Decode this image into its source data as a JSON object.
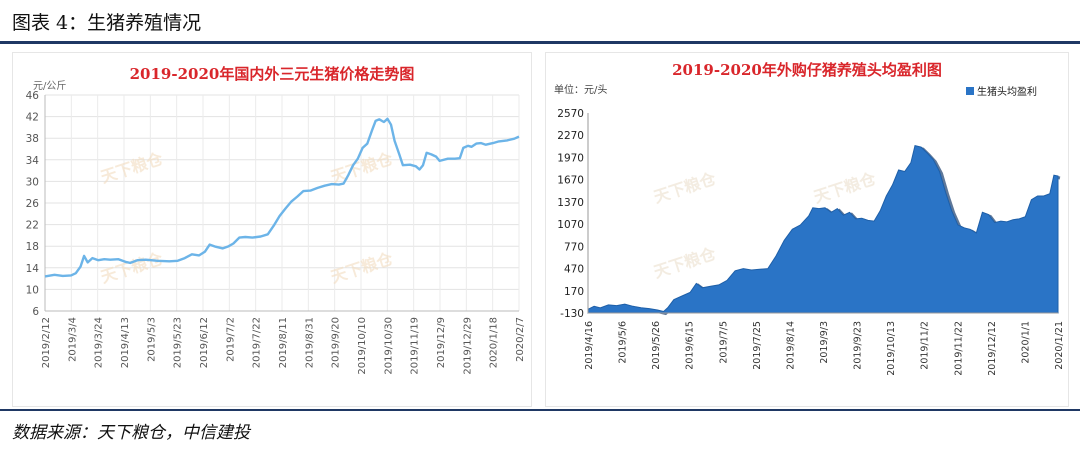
{
  "figure_title": "图表 4：生猪养殖情况",
  "source_text": "数据来源：天下粮仓，中信建投",
  "chart_data": [
    {
      "type": "line",
      "title": "2019-2020年国内外三元生猪价格走势图",
      "ylabel": "元/公斤",
      "ylim": [
        6,
        46
      ],
      "yticks": [
        "6",
        "10",
        "14",
        "18",
        "22",
        "26",
        "30",
        "34",
        "38",
        "42",
        "46"
      ],
      "x_tick_labels": [
        "2019/2/12",
        "2019/3/4",
        "2019/3/24",
        "2019/4/13",
        "2019/5/3",
        "2019/5/23",
        "2019/6/12",
        "2019/7/2",
        "2019/7/22",
        "2019/8/11",
        "2019/8/31",
        "2019/9/20",
        "2019/10/10",
        "2019/10/30",
        "2019/11/19",
        "2019/12/9",
        "2019/12/29",
        "2020/1/18",
        "2020/2/7"
      ],
      "grid": true,
      "color": "#6cb4e8",
      "series": [
        {
          "points": [
            [
              0,
              12.4
            ],
            [
              0.8,
              12.7
            ],
            [
              1.5,
              12.5
            ],
            [
              2.2,
              12.6
            ],
            [
              2.6,
              13.0
            ],
            [
              3.0,
              14.2
            ],
            [
              3.3,
              16.2
            ],
            [
              3.6,
              15.0
            ],
            [
              4.0,
              15.8
            ],
            [
              4.5,
              15.4
            ],
            [
              5.0,
              15.6
            ],
            [
              5.5,
              15.5
            ],
            [
              6.2,
              15.6
            ],
            [
              6.8,
              15.1
            ],
            [
              7.2,
              14.9
            ],
            [
              7.8,
              15.4
            ],
            [
              8.5,
              15.5
            ],
            [
              9.5,
              15.3
            ],
            [
              10.5,
              15.2
            ],
            [
              11.2,
              15.3
            ],
            [
              11.8,
              15.8
            ],
            [
              12.4,
              16.5
            ],
            [
              13.0,
              16.3
            ],
            [
              13.5,
              17.0
            ],
            [
              13.9,
              18.3
            ],
            [
              14.4,
              17.9
            ],
            [
              15.0,
              17.6
            ],
            [
              15.5,
              18.0
            ],
            [
              15.9,
              18.5
            ],
            [
              16.4,
              19.6
            ],
            [
              16.9,
              19.7
            ],
            [
              17.5,
              19.6
            ],
            [
              18.2,
              19.8
            ],
            [
              18.8,
              20.2
            ],
            [
              19.3,
              21.8
            ],
            [
              19.8,
              23.6
            ],
            [
              20.3,
              25.0
            ],
            [
              20.8,
              26.3
            ],
            [
              21.3,
              27.2
            ],
            [
              21.8,
              28.2
            ],
            [
              22.4,
              28.3
            ],
            [
              23.0,
              28.8
            ],
            [
              23.6,
              29.2
            ],
            [
              24.2,
              29.5
            ],
            [
              24.8,
              29.4
            ],
            [
              25.2,
              29.6
            ],
            [
              25.6,
              31.2
            ],
            [
              26.0,
              33.0
            ],
            [
              26.4,
              34.2
            ],
            [
              26.8,
              36.2
            ],
            [
              27.2,
              37.0
            ],
            [
              27.6,
              39.5
            ],
            [
              27.9,
              41.2
            ],
            [
              28.2,
              41.5
            ],
            [
              28.6,
              41.0
            ],
            [
              28.9,
              41.6
            ],
            [
              29.2,
              40.5
            ],
            [
              29.5,
              37.5
            ],
            [
              29.9,
              35.0
            ],
            [
              30.2,
              33.0
            ],
            [
              30.8,
              33.1
            ],
            [
              31.3,
              32.8
            ],
            [
              31.6,
              32.2
            ],
            [
              31.9,
              33.0
            ],
            [
              32.2,
              35.3
            ],
            [
              32.6,
              35.0
            ],
            [
              33.0,
              34.6
            ],
            [
              33.3,
              33.8
            ],
            [
              34.0,
              34.2
            ],
            [
              34.6,
              34.2
            ],
            [
              35.0,
              34.3
            ],
            [
              35.3,
              36.2
            ],
            [
              35.7,
              36.6
            ],
            [
              36.0,
              36.4
            ],
            [
              36.4,
              37.0
            ],
            [
              36.8,
              37.1
            ],
            [
              37.2,
              36.8
            ],
            [
              37.8,
              37.1
            ],
            [
              38.3,
              37.4
            ],
            [
              39.0,
              37.6
            ],
            [
              39.6,
              37.9
            ],
            [
              40.0,
              38.3
            ]
          ]
        }
      ],
      "watermark": "天下粮仓"
    },
    {
      "type": "area",
      "title": "2019-2020年外购仔猪养殖头均盈利图",
      "ylabel": "单位：元/头",
      "ylim": [
        -130,
        2570
      ],
      "yticks": [
        "-130",
        "170",
        "470",
        "770",
        "1070",
        "1370",
        "1670",
        "1970",
        "2270",
        "2570"
      ],
      "x_tick_labels": [
        "2019/4/16",
        "2019/5/6",
        "2019/5/26",
        "2019/6/15",
        "2019/7/5",
        "2019/7/25",
        "2019/8/14",
        "2019/9/3",
        "2019/9/23",
        "2019/10/13",
        "2019/11/2",
        "2019/11/22",
        "2019/12/12",
        "2020/1/1",
        "2020/1/21"
      ],
      "legend": "生猪头均盈利",
      "legend_position": "top-right",
      "color": "#2a74c6",
      "grid": false,
      "series": [
        {
          "name": "生猪头均盈利",
          "points": [
            [
              0,
              -80
            ],
            [
              0.3,
              -40
            ],
            [
              0.6,
              -60
            ],
            [
              1.0,
              -20
            ],
            [
              1.4,
              -30
            ],
            [
              1.8,
              -10
            ],
            [
              2.2,
              -40
            ],
            [
              2.6,
              -60
            ],
            [
              3.0,
              -70
            ],
            [
              3.4,
              -90
            ],
            [
              3.7,
              -110
            ],
            [
              3.9,
              -60
            ],
            [
              4.2,
              50
            ],
            [
              4.6,
              100
            ],
            [
              5.0,
              150
            ],
            [
              5.3,
              270
            ],
            [
              5.6,
              210
            ],
            [
              6.0,
              230
            ],
            [
              6.4,
              250
            ],
            [
              6.8,
              310
            ],
            [
              7.2,
              440
            ],
            [
              7.6,
              470
            ],
            [
              8.0,
              450
            ],
            [
              8.4,
              460
            ],
            [
              8.8,
              470
            ],
            [
              9.2,
              640
            ],
            [
              9.6,
              850
            ],
            [
              10.0,
              1000
            ],
            [
              10.4,
              1060
            ],
            [
              10.8,
              1180
            ],
            [
              11.0,
              1290
            ],
            [
              11.3,
              1280
            ],
            [
              11.6,
              1290
            ],
            [
              11.9,
              1230
            ],
            [
              12.2,
              1280
            ],
            [
              12.5,
              1190
            ],
            [
              12.8,
              1230
            ],
            [
              13.1,
              1140
            ],
            [
              13.4,
              1150
            ],
            [
              13.7,
              1120
            ],
            [
              14.0,
              1110
            ],
            [
              14.3,
              1250
            ],
            [
              14.6,
              1450
            ],
            [
              14.9,
              1600
            ],
            [
              15.2,
              1800
            ],
            [
              15.5,
              1780
            ],
            [
              15.8,
              1900
            ],
            [
              16.0,
              2130
            ],
            [
              16.3,
              2110
            ],
            [
              16.6,
              2030
            ],
            [
              16.9,
              1940
            ],
            [
              17.2,
              1780
            ],
            [
              17.5,
              1500
            ],
            [
              17.8,
              1250
            ],
            [
              18.1,
              1060
            ],
            [
              18.4,
              1020
            ],
            [
              18.7,
              1000
            ],
            [
              19.0,
              950
            ],
            [
              19.3,
              1230
            ],
            [
              19.6,
              1200
            ],
            [
              19.9,
              1090
            ],
            [
              20.2,
              1110
            ],
            [
              20.5,
              1100
            ],
            [
              20.8,
              1130
            ],
            [
              21.1,
              1140
            ],
            [
              21.4,
              1170
            ],
            [
              21.7,
              1400
            ],
            [
              22.0,
              1450
            ],
            [
              22.3,
              1450
            ],
            [
              22.6,
              1480
            ],
            [
              22.8,
              1730
            ],
            [
              23.0,
              1720
            ]
          ]
        }
      ],
      "watermark": "天下粮仓"
    }
  ]
}
